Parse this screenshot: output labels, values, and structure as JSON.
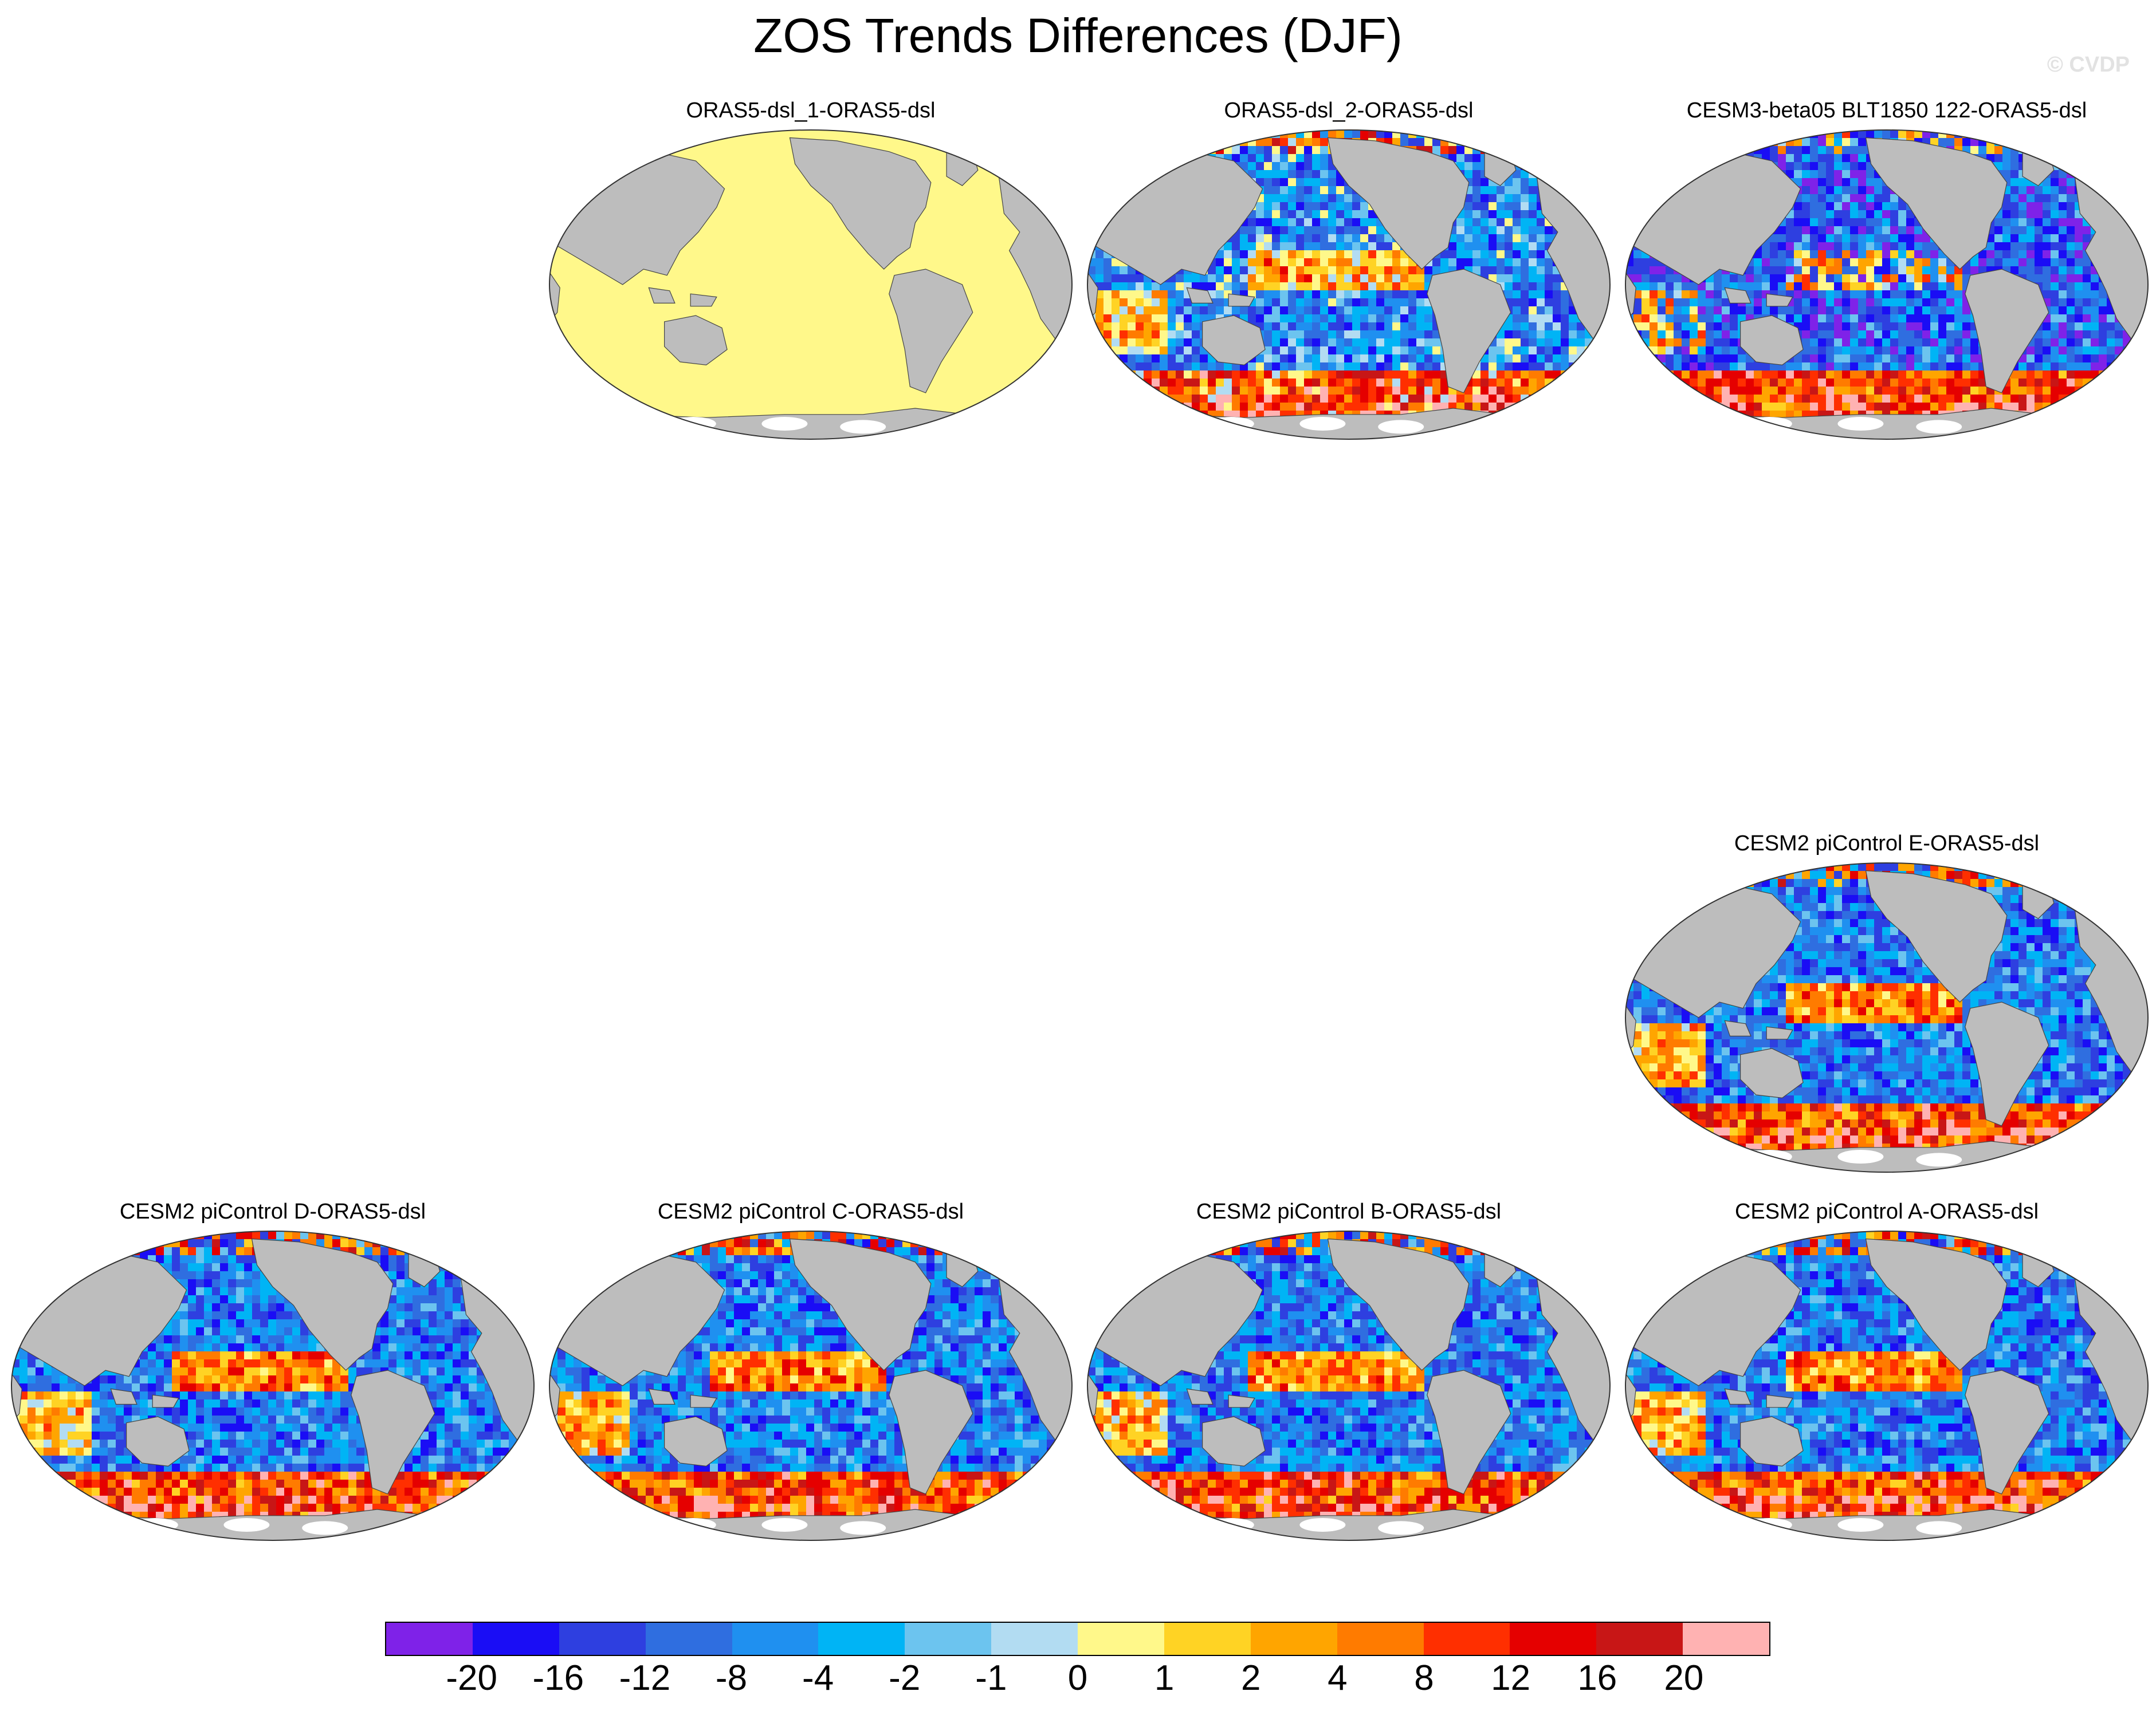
{
  "title": "ZOS Trends Differences (DJF)",
  "watermark": "© CVDP",
  "panels": [
    {
      "id": "p1",
      "title": "ORAS5-dsl_1-ORAS5-dsl",
      "field": "uniform",
      "seed": 1
    },
    {
      "id": "p2",
      "title": "ORAS5-dsl_2-ORAS5-dsl",
      "field": "reanalysis",
      "seed": 2
    },
    {
      "id": "p3",
      "title": "CESM3-beta05 BLT1850 122-ORAS5-dsl",
      "field": "model-blue",
      "seed": 3
    },
    {
      "id": "p4",
      "title": "CESM2 piControl E-ORAS5-dsl",
      "field": "model",
      "seed": 4
    },
    {
      "id": "p5",
      "title": "CESM2 piControl D-ORAS5-dsl",
      "field": "model",
      "seed": 5
    },
    {
      "id": "p6",
      "title": "CESM2 piControl C-ORAS5-dsl",
      "field": "model",
      "seed": 6
    },
    {
      "id": "p7",
      "title": "CESM2 piControl B-ORAS5-dsl",
      "field": "model",
      "seed": 7
    },
    {
      "id": "p8",
      "title": "CESM2 piControl A-ORAS5-dsl",
      "field": "model",
      "seed": 8
    }
  ],
  "colors": {
    "land": "#bdbdbd",
    "ice": "#ffffff",
    "scale": [
      "#7f22e8",
      "#1a0df5",
      "#2e3fe0",
      "#2f6ee0",
      "#1f90f0",
      "#00b4f5",
      "#6cc4ef",
      "#b2dcf2",
      "#fff88a",
      "#ffd324",
      "#ffa500",
      "#ff7b00",
      "#ff2f00",
      "#e50000",
      "#c81616",
      "#ffb2b2"
    ]
  },
  "colorbar": {
    "labels": [
      "-20",
      "-16",
      "-12",
      "-8",
      "-4",
      "-2",
      "-1",
      "0",
      "1",
      "2",
      "4",
      "8",
      "12",
      "16",
      "20"
    ]
  }
}
